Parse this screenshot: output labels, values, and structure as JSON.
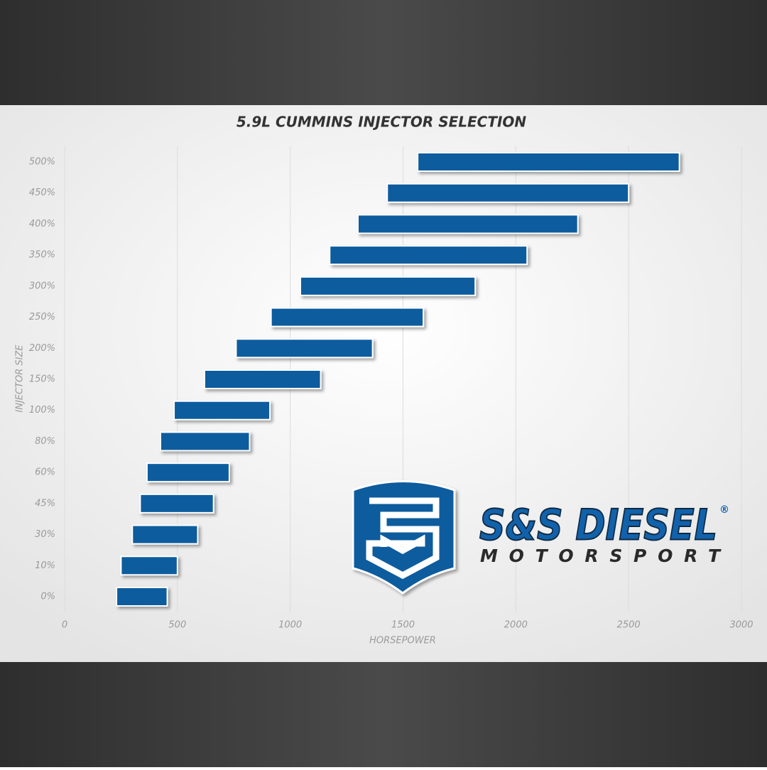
{
  "chart_data": {
    "type": "floating-bar",
    "title": "5.9L CUMMINS INJECTOR SELECTION",
    "x_label": "HORSEPOWER",
    "y_label": "INJECTOR SIZE",
    "categories": [
      "0%",
      "10%",
      "30%",
      "45%",
      "60%",
      "80%",
      "100%",
      "150%",
      "200%",
      "250%",
      "300%",
      "350%",
      "400%",
      "450%",
      "500%"
    ],
    "low": [
      230,
      250,
      300,
      335,
      365,
      425,
      485,
      620,
      760,
      915,
      1045,
      1175,
      1300,
      1430,
      1565
    ],
    "high": [
      455,
      500,
      590,
      660,
      730,
      820,
      910,
      1135,
      1365,
      1590,
      1820,
      2050,
      2275,
      2500,
      2725
    ],
    "color": "#0b5b9e",
    "xlim": [
      0,
      3000
    ],
    "xticks": [
      0,
      500,
      1000,
      1500,
      2000,
      2500,
      3000
    ],
    "grid": true
  },
  "logo": {
    "name": "S&S DIESEL",
    "mark": "®",
    "tagline": "MOTORSPORT"
  }
}
